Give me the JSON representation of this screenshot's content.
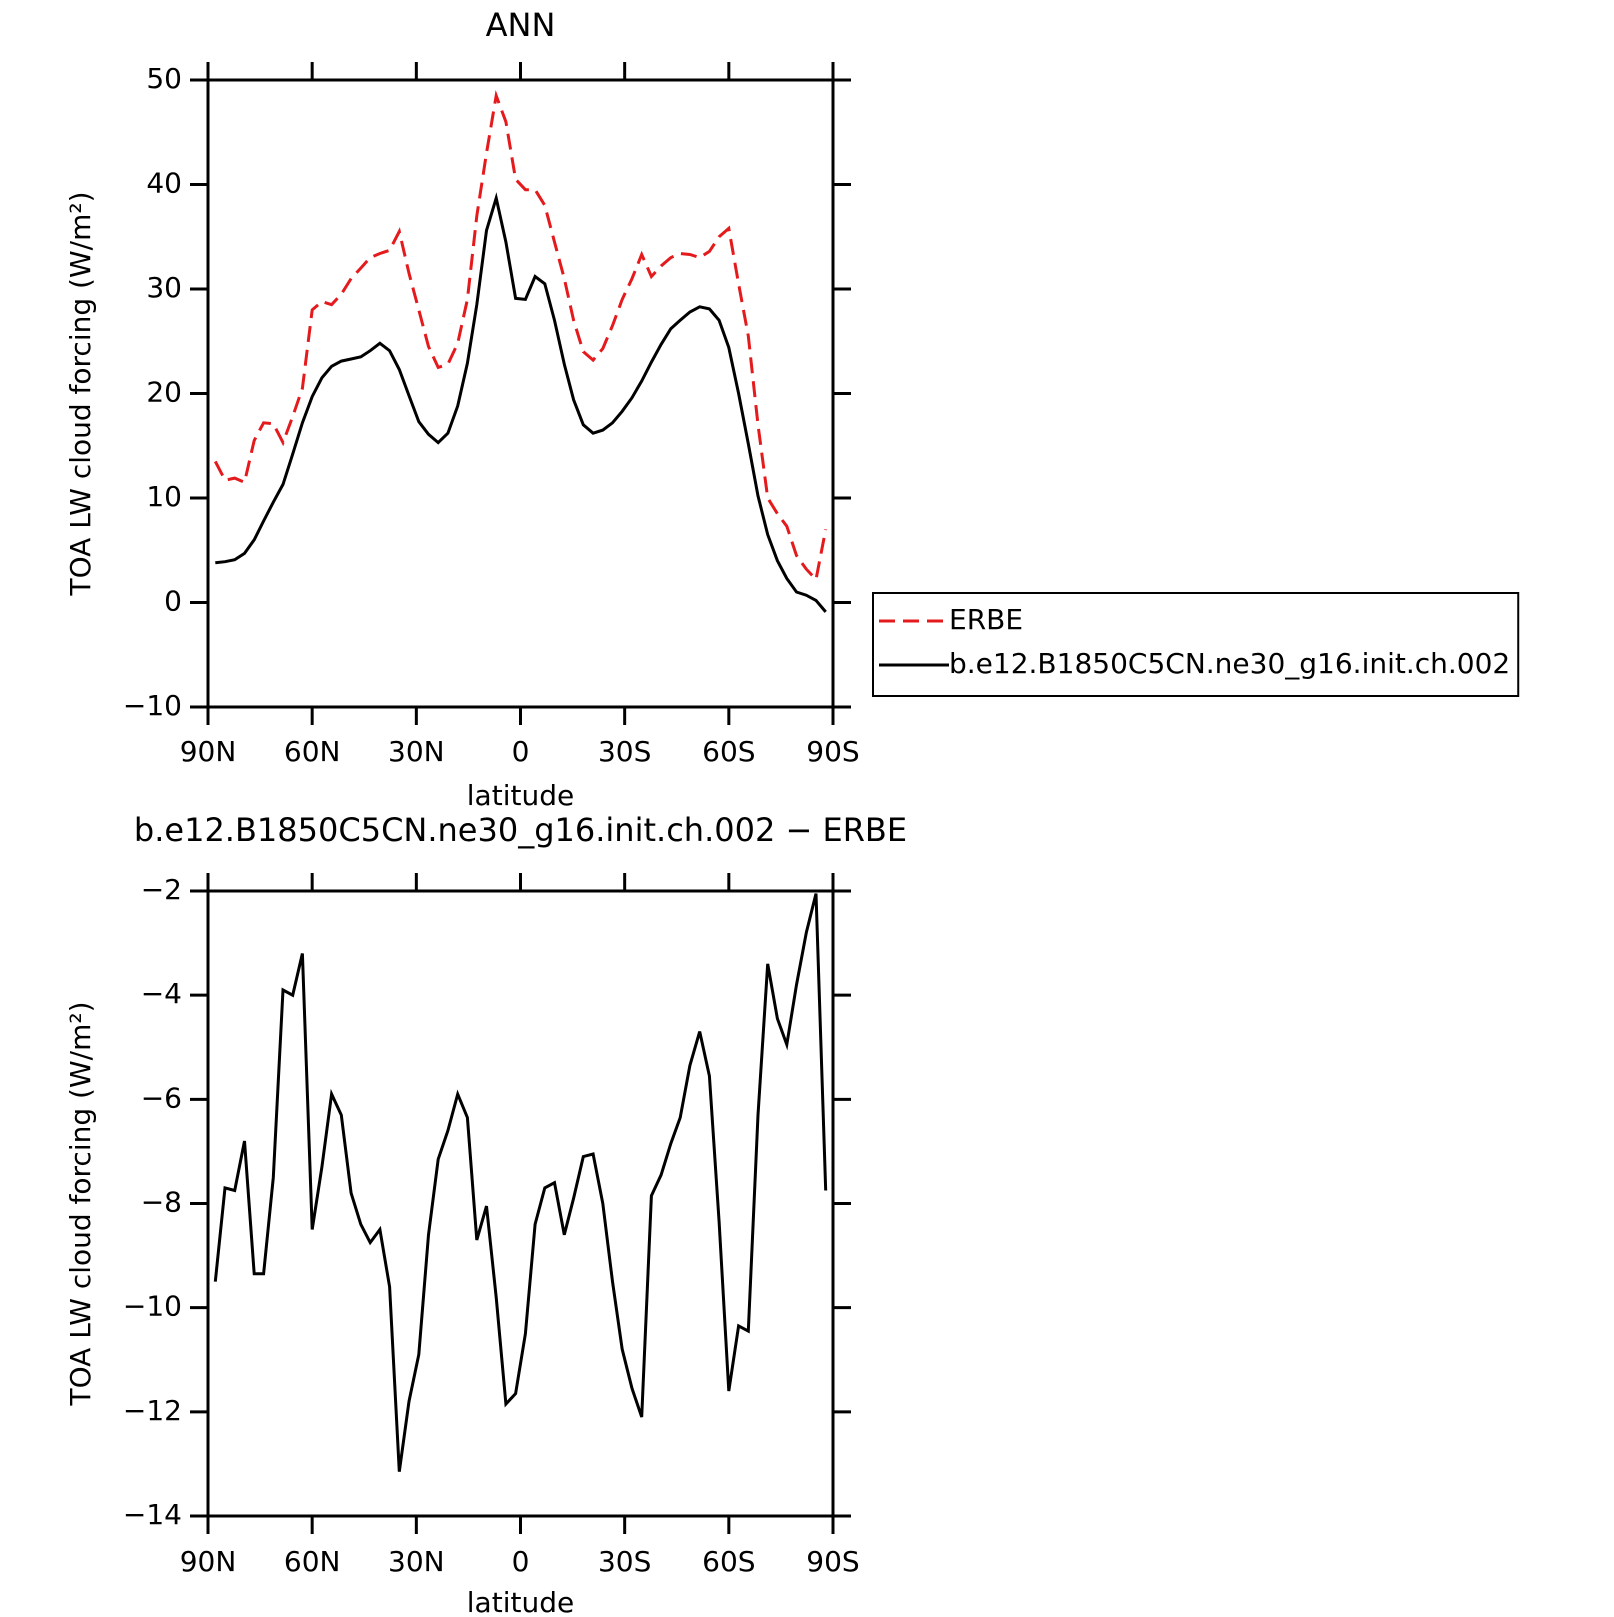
{
  "chart_data": [
    {
      "type": "line",
      "title": "ANN",
      "xlabel": "latitude",
      "ylabel": "TOA LW cloud forcing (W/m²)",
      "x": [
        87.9,
        85.1,
        82.3,
        79.5,
        76.7,
        74.0,
        71.2,
        68.4,
        65.6,
        62.8,
        60.0,
        57.2,
        54.4,
        51.6,
        48.8,
        46.0,
        43.3,
        40.5,
        37.7,
        34.9,
        32.1,
        29.3,
        26.5,
        23.7,
        20.9,
        18.1,
        15.3,
        12.6,
        9.8,
        7.0,
        4.2,
        1.4,
        -1.4,
        -4.2,
        -7.0,
        -9.8,
        -12.6,
        -15.3,
        -18.1,
        -20.9,
        -23.7,
        -26.5,
        -29.3,
        -32.1,
        -34.9,
        -37.7,
        -40.5,
        -43.3,
        -46.0,
        -48.8,
        -51.6,
        -54.4,
        -57.2,
        -60.0,
        -62.8,
        -65.6,
        -68.4,
        -71.2,
        -74.0,
        -76.7,
        -79.5,
        -82.3,
        -85.1,
        -87.9
      ],
      "xlim": [
        90,
        -90
      ],
      "xticks": [
        {
          "value": 90,
          "label": "90N"
        },
        {
          "value": 60,
          "label": "60N"
        },
        {
          "value": 30,
          "label": "30N"
        },
        0,
        {
          "value": -30,
          "label": "30S"
        },
        {
          "value": -60,
          "label": "60S"
        },
        {
          "value": -90,
          "label": "90S"
        }
      ],
      "ylim": [
        -10,
        50
      ],
      "yticks": [
        -10,
        0,
        10,
        20,
        30,
        40,
        50
      ],
      "legend": "outside right",
      "series": [
        {
          "name": "ERBE",
          "color": "#e41a1c",
          "dash": true,
          "values": [
            13.5,
            11.7,
            11.9,
            11.5,
            15.5,
            17.2,
            17.1,
            15.3,
            17.8,
            20.5,
            28.0,
            28.8,
            28.5,
            29.5,
            31.0,
            32.0,
            33.0,
            33.4,
            33.7,
            35.5,
            31.5,
            28.0,
            24.5,
            22.5,
            22.8,
            24.8,
            29.0,
            37.0,
            43.0,
            48.5,
            46.0,
            40.5,
            39.5,
            39.5,
            38.0,
            34.5,
            31.0,
            27.0,
            24.0,
            23.2,
            24.3,
            26.5,
            29.0,
            31.0,
            33.3,
            31.2,
            32.2,
            33.0,
            33.4,
            33.3,
            33.0,
            33.6,
            35.0,
            35.8,
            30.5,
            25.5,
            17.0,
            10.0,
            8.5,
            7.3,
            4.5,
            3.2,
            2.2,
            7.0
          ]
        },
        {
          "name": "b.e12.B1850C5CN.ne30_g16.init.ch.002",
          "color": "#000000",
          "dash": false,
          "values": [
            3.8,
            3.9,
            4.1,
            4.7,
            6.0,
            7.8,
            9.6,
            11.3,
            14.2,
            17.2,
            19.7,
            21.5,
            22.6,
            23.1,
            23.3,
            23.5,
            24.1,
            24.8,
            24.1,
            22.3,
            19.8,
            17.3,
            16.1,
            15.3,
            16.2,
            18.8,
            22.9,
            28.5,
            35.6,
            38.7,
            34.5,
            29.1,
            29.0,
            31.2,
            30.5,
            27.0,
            22.8,
            19.4,
            17.0,
            16.2,
            16.5,
            17.2,
            18.3,
            19.6,
            21.2,
            23.0,
            24.7,
            26.2,
            27.0,
            27.8,
            28.3,
            28.1,
            27.0,
            24.4,
            20.0,
            15.2,
            10.2,
            6.5,
            4.0,
            2.3,
            1.0,
            0.7,
            0.2,
            -0.9
          ]
        }
      ]
    },
    {
      "type": "line",
      "title": "b.e12.B1850C5CN.ne30_g16.init.ch.002 − ERBE",
      "xlabel": "latitude",
      "ylabel": "TOA LW cloud forcing (W/m²)",
      "x": [
        87.9,
        85.1,
        82.3,
        79.5,
        76.7,
        74.0,
        71.2,
        68.4,
        65.6,
        62.8,
        60.0,
        57.2,
        54.4,
        51.6,
        48.8,
        46.0,
        43.3,
        40.5,
        37.7,
        34.9,
        32.1,
        29.3,
        26.5,
        23.7,
        20.9,
        18.1,
        15.3,
        12.6,
        9.8,
        7.0,
        4.2,
        1.4,
        -1.4,
        -4.2,
        -7.0,
        -9.8,
        -12.6,
        -15.3,
        -18.1,
        -20.9,
        -23.7,
        -26.5,
        -29.3,
        -32.1,
        -34.9,
        -37.7,
        -40.5,
        -43.3,
        -46.0,
        -48.8,
        -51.6,
        -54.4,
        -57.2,
        -60.0,
        -62.8,
        -65.6,
        -68.4,
        -71.2,
        -74.0,
        -76.7,
        -79.5,
        -82.3,
        -85.1,
        -87.9
      ],
      "xlim": [
        90,
        -90
      ],
      "xticks": [
        {
          "value": 90,
          "label": "90N"
        },
        {
          "value": 60,
          "label": "60N"
        },
        {
          "value": 30,
          "label": "30N"
        },
        0,
        {
          "value": -30,
          "label": "30S"
        },
        {
          "value": -60,
          "label": "60S"
        },
        {
          "value": -90,
          "label": "90S"
        }
      ],
      "ylim": [
        -14,
        -2
      ],
      "yticks": [
        -14,
        -12,
        -10,
        -8,
        -6,
        -4,
        -2
      ],
      "series": [
        {
          "color": "#000000",
          "dash": false,
          "values": [
            -9.5,
            -7.7,
            -7.75,
            -6.8,
            -9.35,
            -9.35,
            -7.5,
            -3.9,
            -4.0,
            -3.2,
            -8.5,
            -7.3,
            -5.9,
            -6.3,
            -7.8,
            -8.4,
            -8.75,
            -8.5,
            -9.6,
            -13.15,
            -11.8,
            -10.9,
            -8.6,
            -7.15,
            -6.6,
            -5.9,
            -6.35,
            -8.7,
            -8.05,
            -9.8,
            -11.85,
            -11.65,
            -10.5,
            -8.4,
            -7.7,
            -7.6,
            -8.6,
            -7.9,
            -7.1,
            -7.05,
            -8.0,
            -9.5,
            -10.8,
            -11.55,
            -12.1,
            -7.85,
            -7.45,
            -6.85,
            -6.35,
            -5.35,
            -4.7,
            -5.55,
            -8.35,
            -11.6,
            -10.35,
            -10.45,
            -6.3,
            -3.4,
            -4.45,
            -4.95,
            -3.8,
            -2.8,
            -2.05,
            -7.75
          ]
        }
      ]
    }
  ]
}
